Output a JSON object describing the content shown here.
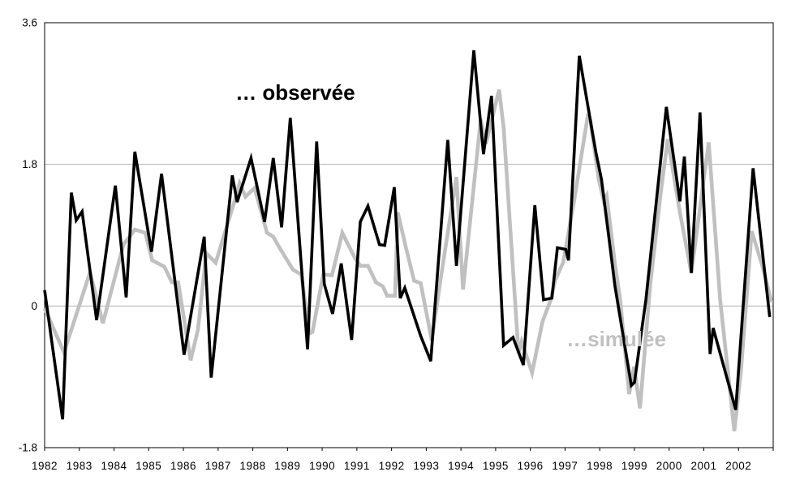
{
  "chart_data": {
    "type": "line",
    "title": "",
    "xlabel": "",
    "ylabel": "",
    "background": "#ffffff",
    "plot_border_color": "#000000",
    "gridline_color": "#b0b0b0",
    "gridlines_y": [
      0,
      1.8
    ],
    "y_axis": {
      "range": [
        -1.8,
        3.6
      ],
      "ticks": [
        -1.8,
        0,
        1.8,
        3.6
      ],
      "tick_labels": [
        "-1.8",
        "0",
        "1.8",
        "3.6"
      ]
    },
    "x_axis": {
      "range": [
        1982,
        2003
      ],
      "ticks": [
        1982,
        1983,
        1984,
        1985,
        1986,
        1987,
        1988,
        1989,
        1990,
        1991,
        1992,
        1993,
        1994,
        1995,
        1996,
        1997,
        1998,
        1999,
        2000,
        2001,
        2002,
        2003
      ],
      "tick_labels": [
        "1982",
        "1983",
        "1984",
        "1985",
        "1986",
        "1987",
        "1988",
        "1989",
        "1990",
        "1991",
        "1992",
        "1993",
        "1994",
        "1995",
        "1996",
        "1997",
        "1998",
        "1999",
        "2000",
        "2001",
        "2002"
      ]
    },
    "annotations": [
      {
        "id": "label-observee",
        "text": "… observée",
        "year": 1987.5,
        "value": 2.62,
        "color": "#000000",
        "font_size": 26,
        "bold": true
      },
      {
        "id": "label-simulee",
        "text": "…simulée",
        "year": 1997.04,
        "value": -0.51,
        "color": "#c0c0c0",
        "font_size": 26,
        "bold": true
      }
    ],
    "series": [
      {
        "name": "simulée",
        "color": "#c0c0c0",
        "stroke_width": 4.6,
        "points": [
          [
            1982.0,
            -0.03
          ],
          [
            1982.56,
            -0.59
          ],
          [
            1983.31,
            0.43
          ],
          [
            1983.68,
            -0.22
          ],
          [
            1984.27,
            0.78
          ],
          [
            1984.6,
            0.97
          ],
          [
            1984.9,
            0.93
          ],
          [
            1985.1,
            0.58
          ],
          [
            1985.45,
            0.5
          ],
          [
            1985.67,
            0.3
          ],
          [
            1985.85,
            0.3
          ],
          [
            1986.21,
            -0.69
          ],
          [
            1986.42,
            -0.3
          ],
          [
            1986.66,
            0.67
          ],
          [
            1986.93,
            0.55
          ],
          [
            1987.48,
            1.34
          ],
          [
            1987.62,
            1.56
          ],
          [
            1987.79,
            1.39
          ],
          [
            1988.05,
            1.5
          ],
          [
            1988.41,
            0.93
          ],
          [
            1988.59,
            0.88
          ],
          [
            1988.77,
            0.74
          ],
          [
            1989.16,
            0.46
          ],
          [
            1989.4,
            0.4
          ],
          [
            1989.63,
            -0.35
          ],
          [
            1989.72,
            -0.33
          ],
          [
            1990.03,
            0.4
          ],
          [
            1990.28,
            0.39
          ],
          [
            1990.58,
            0.93
          ],
          [
            1990.93,
            0.62
          ],
          [
            1991.1,
            0.51
          ],
          [
            1991.32,
            0.51
          ],
          [
            1991.55,
            0.3
          ],
          [
            1991.75,
            0.25
          ],
          [
            1991.87,
            0.13
          ],
          [
            1992.1,
            0.13
          ],
          [
            1992.18,
            1.19
          ],
          [
            1992.4,
            0.77
          ],
          [
            1992.65,
            0.32
          ],
          [
            1992.84,
            0.29
          ],
          [
            1993.16,
            -0.44
          ],
          [
            1993.44,
            0.42
          ],
          [
            1993.87,
            1.64
          ],
          [
            1994.06,
            0.21
          ],
          [
            1994.57,
            2.37
          ],
          [
            1994.72,
            2.06
          ],
          [
            1995.1,
            2.75
          ],
          [
            1995.23,
            2.27
          ],
          [
            1995.66,
            -0.6
          ],
          [
            1995.75,
            -0.45
          ],
          [
            1996.05,
            -0.85
          ],
          [
            1996.35,
            -0.2
          ],
          [
            1996.59,
            0.08
          ],
          [
            1996.71,
            0.32
          ],
          [
            1996.95,
            0.56
          ],
          [
            1997.26,
            1.33
          ],
          [
            1997.65,
            2.4
          ],
          [
            1997.73,
            2.36
          ],
          [
            1997.97,
            1.61
          ],
          [
            1998.12,
            1.33
          ],
          [
            1998.2,
            1.4
          ],
          [
            1998.44,
            0.53
          ],
          [
            1998.59,
            0.08
          ],
          [
            1998.85,
            -1.12
          ],
          [
            1998.99,
            -0.77
          ],
          [
            1999.16,
            -1.3
          ],
          [
            1999.45,
            0.25
          ],
          [
            1999.76,
            1.45
          ],
          [
            1999.96,
            2.12
          ],
          [
            2000.31,
            1.19
          ],
          [
            2000.64,
            0.42
          ],
          [
            2001.14,
            2.08
          ],
          [
            2001.47,
            0.08
          ],
          [
            2001.88,
            -1.59
          ],
          [
            2002.07,
            -0.83
          ],
          [
            2002.38,
            0.95
          ],
          [
            2002.7,
            0.49
          ],
          [
            2002.95,
            0.05
          ]
        ]
      },
      {
        "name": "observée",
        "color": "#000000",
        "stroke_width": 3.6,
        "points": [
          [
            1982.0,
            0.2
          ],
          [
            1982.52,
            -1.44
          ],
          [
            1982.77,
            1.44
          ],
          [
            1982.91,
            1.09
          ],
          [
            1983.08,
            1.2
          ],
          [
            1983.5,
            -0.18
          ],
          [
            1984.04,
            1.53
          ],
          [
            1984.35,
            0.11
          ],
          [
            1984.6,
            1.96
          ],
          [
            1985.08,
            0.69
          ],
          [
            1985.37,
            1.68
          ],
          [
            1986.02,
            -0.62
          ],
          [
            1986.6,
            0.88
          ],
          [
            1986.8,
            -0.91
          ],
          [
            1987.41,
            1.66
          ],
          [
            1987.55,
            1.32
          ],
          [
            1987.95,
            1.88
          ],
          [
            1988.34,
            1.07
          ],
          [
            1988.59,
            1.88
          ],
          [
            1988.83,
            1.0
          ],
          [
            1989.08,
            2.39
          ],
          [
            1989.58,
            -0.55
          ],
          [
            1989.84,
            2.09
          ],
          [
            1990.06,
            0.28
          ],
          [
            1990.3,
            -0.1
          ],
          [
            1990.55,
            0.54
          ],
          [
            1990.85,
            -0.43
          ],
          [
            1991.1,
            1.07
          ],
          [
            1991.32,
            1.27
          ],
          [
            1991.65,
            0.78
          ],
          [
            1991.8,
            0.77
          ],
          [
            1992.08,
            1.51
          ],
          [
            1992.25,
            0.1
          ],
          [
            1992.38,
            0.23
          ],
          [
            1992.84,
            -0.38
          ],
          [
            1993.13,
            -0.7
          ],
          [
            1993.62,
            2.11
          ],
          [
            1993.87,
            0.51
          ],
          [
            1994.37,
            3.25
          ],
          [
            1994.65,
            1.93
          ],
          [
            1994.88,
            2.67
          ],
          [
            1995.23,
            -0.5
          ],
          [
            1995.5,
            -0.4
          ],
          [
            1995.8,
            -0.75
          ],
          [
            1996.13,
            1.28
          ],
          [
            1996.38,
            0.08
          ],
          [
            1996.62,
            0.1
          ],
          [
            1996.78,
            0.74
          ],
          [
            1997.02,
            0.72
          ],
          [
            1997.1,
            0.58
          ],
          [
            1997.41,
            3.18
          ],
          [
            1997.8,
            2.18
          ],
          [
            1997.89,
            1.95
          ],
          [
            1998.05,
            1.61
          ],
          [
            1998.28,
            0.81
          ],
          [
            1998.44,
            0.25
          ],
          [
            1998.91,
            -1.01
          ],
          [
            1999.0,
            -0.97
          ],
          [
            1999.33,
            0.08
          ],
          [
            1999.92,
            2.53
          ],
          [
            2000.31,
            1.33
          ],
          [
            2000.44,
            1.9
          ],
          [
            2000.64,
            0.42
          ],
          [
            2000.89,
            2.46
          ],
          [
            2001.18,
            -0.61
          ],
          [
            2001.27,
            -0.28
          ],
          [
            2001.92,
            -1.32
          ],
          [
            2002.42,
            1.75
          ],
          [
            2002.9,
            -0.14
          ]
        ]
      }
    ],
    "legend_position": "none",
    "grid": "horizontal-only"
  },
  "axis_style": {
    "tick_font_size": 13.5,
    "tick_color": "#000000"
  }
}
